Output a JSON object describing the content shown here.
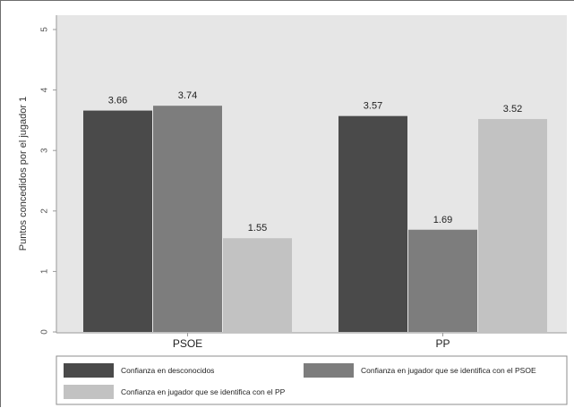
{
  "chart_data": {
    "type": "bar",
    "title": "",
    "xlabel": "",
    "ylabel": "Puntos concedidos por el jugador 1",
    "categories": [
      "PSOE",
      "PP"
    ],
    "ylim": [
      0,
      5
    ],
    "yticks": [
      "0",
      "1",
      "2",
      "3",
      "4",
      "5"
    ],
    "series": [
      {
        "name": "Confianza en desconocidos",
        "color": "#4a4a4a",
        "values": [
          3.66,
          3.57
        ],
        "labels": [
          "3.66",
          "3.57"
        ]
      },
      {
        "name": "Confianza en jugador que se identifica con el PSOE",
        "color": "#7d7d7d",
        "values": [
          3.74,
          1.69
        ],
        "labels": [
          "3.74",
          "1.69"
        ]
      },
      {
        "name": "Confianza en jugador que se identifica con el PP",
        "color": "#c2c2c2",
        "values": [
          1.55,
          3.52
        ],
        "labels": [
          "1.55",
          "3.52"
        ]
      }
    ],
    "grid": false,
    "legend_position": "bottom",
    "background": "#e6e6e6"
  }
}
